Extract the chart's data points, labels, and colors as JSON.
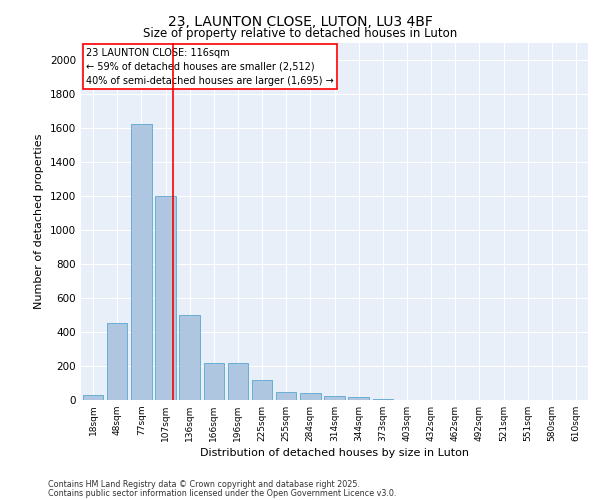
{
  "title_line1": "23, LAUNTON CLOSE, LUTON, LU3 4BF",
  "title_line2": "Size of property relative to detached houses in Luton",
  "xlabel": "Distribution of detached houses by size in Luton",
  "ylabel": "Number of detached properties",
  "categories": [
    "18sqm",
    "48sqm",
    "77sqm",
    "107sqm",
    "136sqm",
    "166sqm",
    "196sqm",
    "225sqm",
    "255sqm",
    "284sqm",
    "314sqm",
    "344sqm",
    "373sqm",
    "403sqm",
    "432sqm",
    "462sqm",
    "492sqm",
    "521sqm",
    "551sqm",
    "580sqm",
    "610sqm"
  ],
  "values": [
    30,
    450,
    1620,
    1200,
    500,
    220,
    220,
    120,
    45,
    40,
    25,
    20,
    5,
    2,
    1,
    1,
    0,
    0,
    0,
    0,
    0
  ],
  "bar_color": "#aec6e0",
  "bar_edge_color": "#6aaed6",
  "annotation_text": "23 LAUNTON CLOSE: 116sqm\n← 59% of detached houses are smaller (2,512)\n40% of semi-detached houses are larger (1,695) →",
  "ylim": [
    0,
    2100
  ],
  "yticks": [
    0,
    200,
    400,
    600,
    800,
    1000,
    1200,
    1400,
    1600,
    1800,
    2000
  ],
  "plot_bg_color": "#e8eff8",
  "footer_line1": "Contains HM Land Registry data © Crown copyright and database right 2025.",
  "footer_line2": "Contains public sector information licensed under the Open Government Licence v3.0."
}
